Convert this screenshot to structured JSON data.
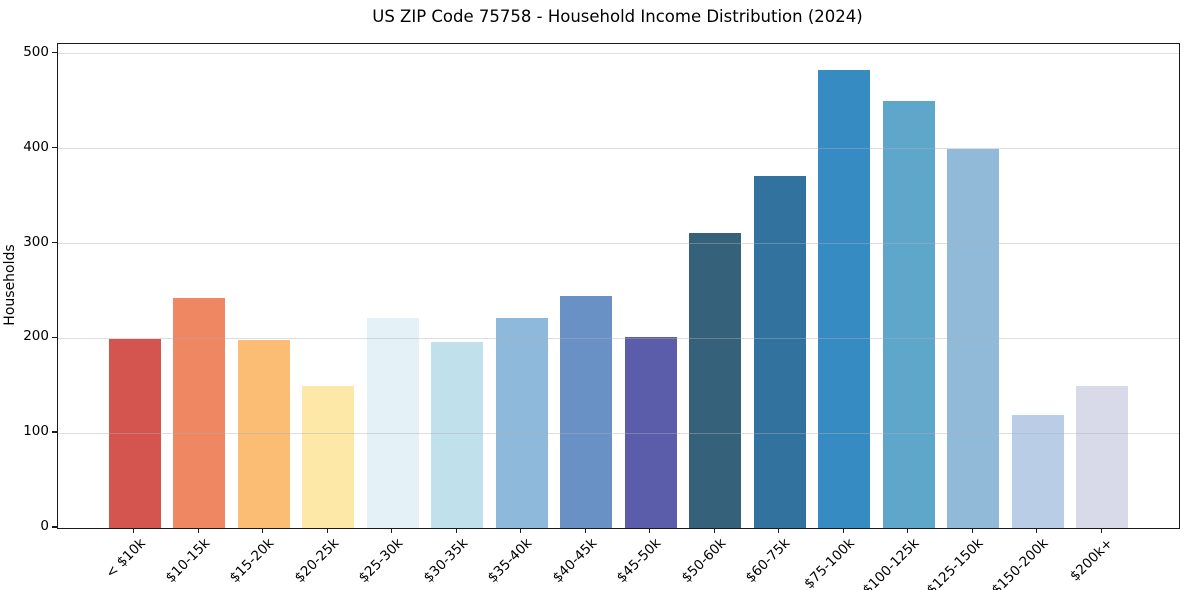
{
  "figure": {
    "background": "#ffffff",
    "text_color": "#000000",
    "spine_color": "#1a1a1a",
    "grid_color": "rgba(175,175,186,0.42)"
  },
  "chart_data": {
    "type": "bar",
    "title": "US ZIP Code 75758 - Household Income Distribution (2024)",
    "xlabel": "",
    "ylabel": "Households",
    "categories": [
      "< $10k",
      "$10-15k",
      "$15-20k",
      "$20-25k",
      "$25-30k",
      "$30-35k",
      "$35-40k",
      "$40-45k",
      "$45-50k",
      "$50-60k",
      "$60-75k",
      "$75-100k",
      "$100-125k",
      "$125-150k",
      "$150-200k",
      "$200k+"
    ],
    "values": [
      199,
      242,
      198,
      150,
      221,
      196,
      221,
      245,
      201,
      311,
      371,
      483,
      450,
      399,
      119,
      150
    ],
    "bar_colors": [
      "#d4554f",
      "#f08763",
      "#fbbd74",
      "#fde8a8",
      "#e4f2f8",
      "#c0e1ec",
      "#8fb9da",
      "#6a91c5",
      "#5b5caa",
      "#36617a",
      "#31739e",
      "#368cc2",
      "#5fa6cb",
      "#91bad9",
      "#b9cde7",
      "#d9dae9"
    ],
    "ylim": [
      0,
      510
    ],
    "yticks": [
      0,
      100,
      200,
      300,
      400,
      500
    ],
    "grid": "y-only, drawn above bars",
    "legend": "none",
    "bar_width_fraction": 0.8,
    "x_margin_fraction": 0.05,
    "x_tick_rotation_deg": 45
  }
}
